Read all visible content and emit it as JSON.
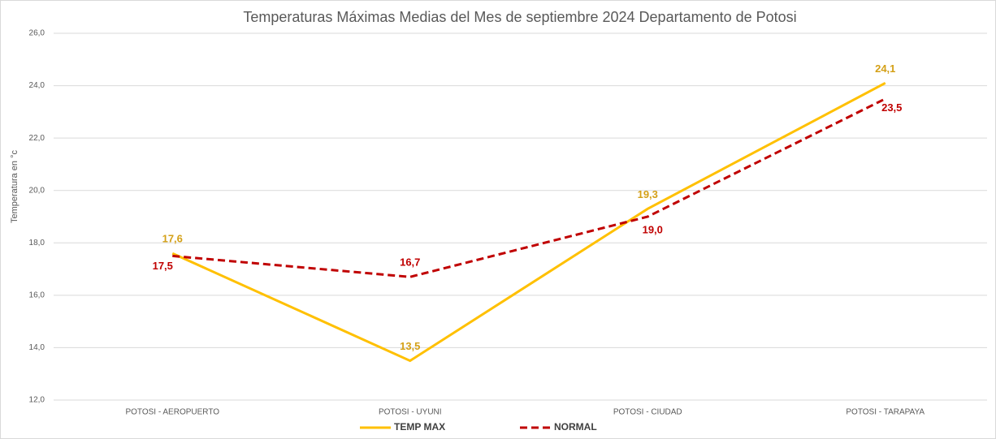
{
  "chart_data": {
    "type": "line",
    "title": "Temperaturas Máximas Medias del Mes de septiembre 2024 Departamento de Potosi",
    "y_label": "Temperatura en °c",
    "categories": [
      "POTOSI - AEROPUERTO",
      "POTOSI - UYUNI",
      "POTOSI - CIUDAD",
      "POTOSI - TARAPAYA"
    ],
    "series": [
      {
        "name": "TEMP MAX",
        "color": "#ffc000",
        "label_color": "#d4a017",
        "dashed": false,
        "values": [
          17.6,
          13.5,
          19.3,
          24.1
        ],
        "value_labels": [
          "17,6",
          "13,5",
          "19,3",
          "24,1"
        ]
      },
      {
        "name": "NORMAL",
        "color": "#c00000",
        "label_color": "#c00000",
        "dashed": true,
        "values": [
          17.5,
          16.7,
          19.0,
          23.5
        ],
        "value_labels": [
          "17,5",
          "16,7",
          "19,0",
          "23,5"
        ]
      }
    ],
    "ylim": [
      12,
      26
    ],
    "yticks": [
      {
        "value": 12,
        "label": "12,0"
      },
      {
        "value": 14,
        "label": "14,0"
      },
      {
        "value": 16,
        "label": "16,0"
      },
      {
        "value": 18,
        "label": "18,0"
      },
      {
        "value": 20,
        "label": "20,0"
      },
      {
        "value": 22,
        "label": "22,0"
      },
      {
        "value": 24,
        "label": "24,0"
      },
      {
        "value": 26,
        "label": "26,0"
      }
    ],
    "grid": true,
    "legend": "bottom"
  }
}
